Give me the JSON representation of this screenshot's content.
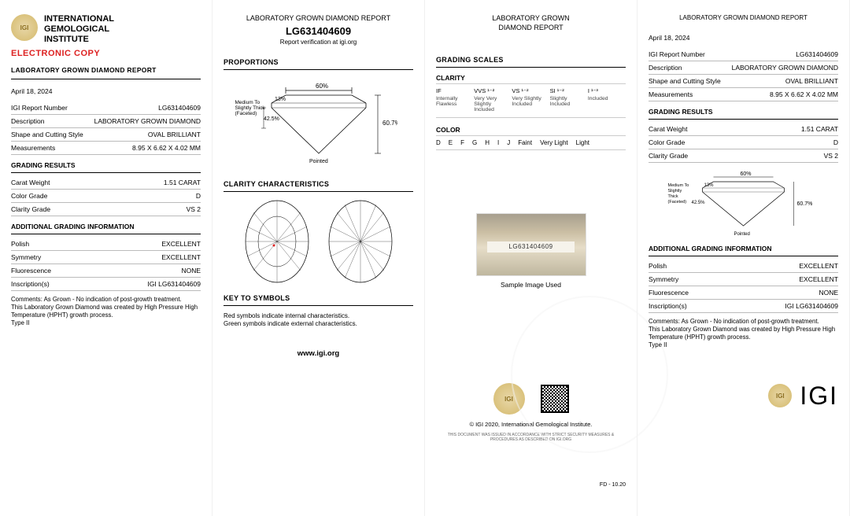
{
  "org": {
    "line1": "INTERNATIONAL",
    "line2": "GEMOLOGICAL",
    "line3": "INSTITUTE"
  },
  "electronic_copy": "ELECTRONIC COPY",
  "report_title": "LABORATORY GROWN DIAMOND REPORT",
  "date": "April 18, 2024",
  "panel1": {
    "fields": [
      {
        "k": "IGI Report Number",
        "v": "LG631404609"
      },
      {
        "k": "Description",
        "v": "LABORATORY GROWN DIAMOND"
      },
      {
        "k": "Shape and Cutting Style",
        "v": "OVAL BRILLIANT"
      },
      {
        "k": "Measurements",
        "v": "8.95 X 6.62 X 4.02 MM"
      }
    ],
    "grading_h": "GRADING RESULTS",
    "grading": [
      {
        "k": "Carat Weight",
        "v": "1.51 CARAT"
      },
      {
        "k": "Color Grade",
        "v": "D"
      },
      {
        "k": "Clarity Grade",
        "v": "VS 2"
      }
    ],
    "addl_h": "ADDITIONAL GRADING INFORMATION",
    "addl": [
      {
        "k": "Polish",
        "v": "EXCELLENT"
      },
      {
        "k": "Symmetry",
        "v": "EXCELLENT"
      },
      {
        "k": "Fluorescence",
        "v": "NONE"
      },
      {
        "k": "Inscription(s)",
        "v": "IGI LG631404609"
      }
    ],
    "comments": "Comments: As Grown - No indication of post-growth treatment.\nThis Laboratory Grown Diamond was created by High Pressure High Temperature (HPHT) growth process.\nType II"
  },
  "panel2": {
    "header": "LABORATORY GROWN DIAMOND REPORT",
    "cert_num": "LG631404609",
    "verify": "Report verification at igi.org",
    "proportions_h": "PROPORTIONS",
    "prop_labels": {
      "table": "60%",
      "crown": "13%",
      "pavilion": "42.5%",
      "depth": "60.7%",
      "girdle": "Medium To Slightly Thick (Faceted)",
      "culet": "Pointed"
    },
    "clarity_h": "CLARITY CHARACTERISTICS",
    "key_h": "KEY TO SYMBOLS",
    "key_text": "Red symbols indicate internal characteristics.\nGreen symbols indicate external characteristics.",
    "footer": "www.igi.org"
  },
  "panel3": {
    "header1": "LABORATORY GROWN",
    "header2": "DIAMOND REPORT",
    "scales_h": "GRADING SCALES",
    "clarity_h": "CLARITY",
    "clarity_top": [
      "IF",
      "VVS ¹⁻²",
      "VS ¹⁻²",
      "SI ¹⁻²",
      "I ¹⁻³"
    ],
    "clarity_sub": [
      "Internally Flawless",
      "Very Very Slightly Included",
      "Very Slightly Included",
      "Slightly Included",
      "Included"
    ],
    "color_h": "COLOR",
    "color_scale": [
      "D",
      "E",
      "F",
      "G",
      "H",
      "I",
      "J",
      "Faint",
      "Very Light",
      "Light"
    ],
    "photo_label": "LG631404609",
    "sample_caption": "Sample Image Used",
    "copyright": "© IGI 2020, International Gemological Institute.",
    "fd": "FD - 10.20",
    "fine_print": "THIS DOCUMENT WAS ISSUED IN ACCORDANCE WITH STRICT SECURITY MEASURES & PROCEDURES AS DESCRIBED ON IGI.ORG"
  },
  "panel4": {
    "header": "LABORATORY GROWN DIAMOND REPORT",
    "date": "April 18, 2024",
    "fields": [
      {
        "k": "IGI Report Number",
        "v": "LG631404609"
      },
      {
        "k": "Description",
        "v": "LABORATORY GROWN DIAMOND"
      },
      {
        "k": "Shape and Cutting Style",
        "v": "OVAL BRILLIANT"
      },
      {
        "k": "Measurements",
        "v": "8.95 X 6.62 X 4.02 MM"
      }
    ],
    "grading_h": "GRADING RESULTS",
    "grading": [
      {
        "k": "Carat Weight",
        "v": "1.51 CARAT"
      },
      {
        "k": "Color Grade",
        "v": "D"
      },
      {
        "k": "Clarity Grade",
        "v": "VS 2"
      }
    ],
    "addl_h": "ADDITIONAL GRADING INFORMATION",
    "addl": [
      {
        "k": "Polish",
        "v": "EXCELLENT"
      },
      {
        "k": "Symmetry",
        "v": "EXCELLENT"
      },
      {
        "k": "Fluorescence",
        "v": "NONE"
      },
      {
        "k": "Inscription(s)",
        "v": "IGI LG631404609"
      }
    ],
    "comments": "Comments: As Grown - No indication of post-growth treatment.\nThis Laboratory Grown Diamond was created by High Pressure High Temperature (HPHT) growth process.\nType II",
    "big_igi": "IGI"
  },
  "colors": {
    "red": "#d22",
    "gold": "#d4b96a",
    "rule": "#bbbbbb"
  }
}
